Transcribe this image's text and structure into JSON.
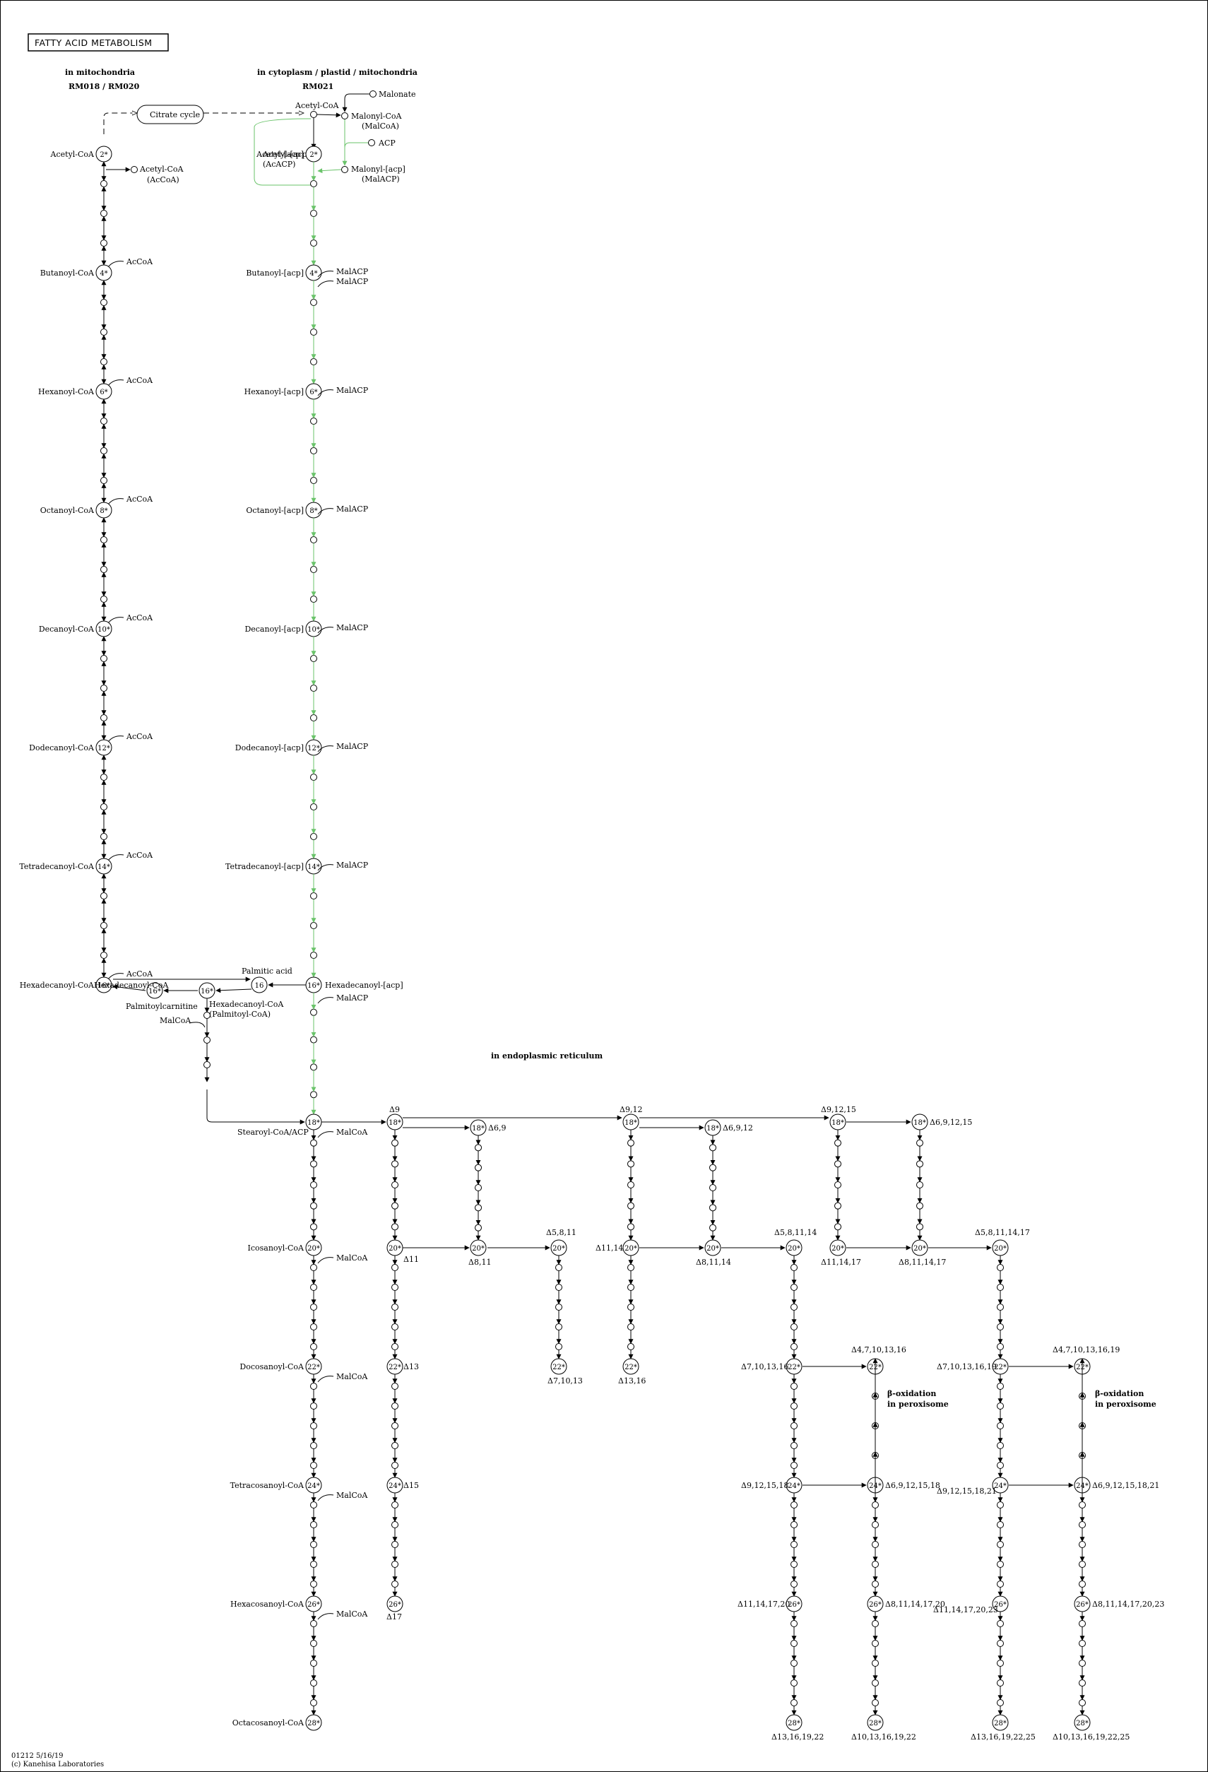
{
  "map_title": "FATTY ACID METABOLISM",
  "footer": {
    "map_id": "01212 5/16/19",
    "copyright": "(c) Kanehisa Laboratories"
  },
  "colors": {
    "line": "#000000",
    "green": "#6ac36a"
  },
  "regions": {
    "mito": "in mitochondria",
    "mito_module": "RM018 / RM020",
    "cyto": "in cytoplasm / plastid / mitochondria",
    "cyto_module": "RM021",
    "er": "in endoplasmic reticulum"
  },
  "boxes": {
    "citrate": "Citrate cycle"
  },
  "nodes": {
    "acetylcoa_top": "Acetyl-CoA",
    "malonate": "Malonate",
    "malonylcoa": "Malonyl-CoA",
    "malcoa_paren": "(MalCoA)",
    "acp": "ACP",
    "acetylacp": "Acetyl-[acp]",
    "acacp_paren": "(AcACP)",
    "malonylacp": "Malonyl-[acp]",
    "malacp_paren": "(MalACP)",
    "acetylcoa_mito": "Acetyl-CoA",
    "acetylcoa_side": "Acetyl-CoA",
    "accoa_paren": "(AcCoA)",
    "palmitic": "Palmitic acid",
    "palmitoylcarnitine": "Palmitoylcarnitine",
    "hexadecanoylcoa_mid": "Hexadecanoyl-CoA",
    "palmitoylcoa_paren": "(Palmitoyl-CoA)",
    "malcoa_mid": "MalCoA",
    "stearoyl": "Stearoyl-CoA/ACP",
    "hexadecanoylacp_r": "Hexadecanoyl-[acp]",
    "malacp_16": "MalACP"
  },
  "side": {
    "accoa": "AcCoA",
    "malacp": "MalACP",
    "malcoa": "MalCoA"
  },
  "beta_ox": [
    "β-oxidation",
    "in peroxisome"
  ],
  "mito_labels": [
    "Acetyl-CoA",
    "Butanoyl-CoA",
    "Hexanoyl-CoA",
    "Octanoyl-CoA",
    "Decanoyl-CoA",
    "Dodecanoyl-CoA",
    "Tetradecanoyl-CoA",
    "Hexadecanoyl-CoA"
  ],
  "cyto_labels": [
    "Acetyl-[acp]",
    "Butanoyl-[acp]",
    "Hexanoyl-[acp]",
    "Octanoyl-[acp]",
    "Decanoyl-[acp]",
    "Dodecanoyl-[acp]",
    "Tetradecanoyl-[acp]"
  ],
  "elong_labels": [
    "Icosanoyl-CoA",
    "Docosanoyl-CoA",
    "Tetracosanoyl-CoA",
    "Hexacosanoyl-CoA",
    "Octacosanoyl-CoA"
  ],
  "mito_carbons": [
    "2*",
    "4*",
    "6*",
    "8*",
    "10*",
    "12*",
    "14*",
    "16*"
  ],
  "cyto_carbons": [
    "2*",
    "4*",
    "6*",
    "8*",
    "10*",
    "12*",
    "14*",
    "16*"
  ],
  "elong_carbons": [
    "18*",
    "20*",
    "22*",
    "24*",
    "26*",
    "28*"
  ],
  "mid_nodes": {
    "n16a": "16",
    "n16b": "16*",
    "n16c": "16*"
  },
  "er_nodes": {
    "c1": [
      "18*",
      "20*",
      "22*",
      "24*",
      "26*"
    ],
    "c1_labels": [
      "Δ9",
      "Δ11",
      "Δ13",
      "Δ15",
      "Δ17"
    ],
    "c2": [
      "18*",
      "20*",
      "20*",
      "22*"
    ],
    "c2_labels": [
      "Δ6,9",
      "Δ8,11",
      "Δ5,8,11",
      "Δ7,10,13"
    ],
    "c4": [
      "18*",
      "20*",
      "22*"
    ],
    "c4_labels": [
      "Δ9,12",
      "Δ11,14",
      "Δ13,16"
    ],
    "c5": [
      "18*",
      "20*"
    ],
    "c5_labels": [
      "Δ6,9,12",
      "Δ8,11,14"
    ],
    "c6": [
      "20*",
      "22*",
      "24*",
      "26*",
      "28*"
    ],
    "c6_labels": [
      "Δ5,8,11,14",
      "Δ7,10,13,16",
      "Δ9,12,15,18",
      "Δ11,14,17,20",
      "Δ13,16,19,22"
    ],
    "c7": [
      "22*",
      "24*",
      "26*",
      "28*"
    ],
    "c7_labels": [
      "Δ4,7,10,13,16",
      "Δ6,9,12,15,18",
      "Δ8,11,14,17,20",
      "Δ10,13,16,19,22"
    ],
    "c8": [
      "18*",
      "20*"
    ],
    "c8_labels": [
      "Δ9,12,15",
      "Δ11,14,17"
    ],
    "c9": [
      "18*",
      "20*"
    ],
    "c9_labels": [
      "Δ6,9,12,15",
      "Δ8,11,14,17"
    ],
    "c10": [
      "20*",
      "22*",
      "24*",
      "26*",
      "28*"
    ],
    "c10_labels": [
      "Δ5,8,11,14,17",
      "Δ7,10,13,16,19",
      "Δ9,12,15,18,21",
      "Δ11,14,17,20,23",
      "Δ13,16,19,22,25"
    ],
    "c11": [
      "22*",
      "24*",
      "26*",
      "28*"
    ],
    "c11_labels": [
      "Δ4,7,10,13,16,19",
      "Δ6,9,12,15,18,21",
      "Δ8,11,14,17,20,23",
      "Δ10,13,16,19,22,25"
    ]
  }
}
